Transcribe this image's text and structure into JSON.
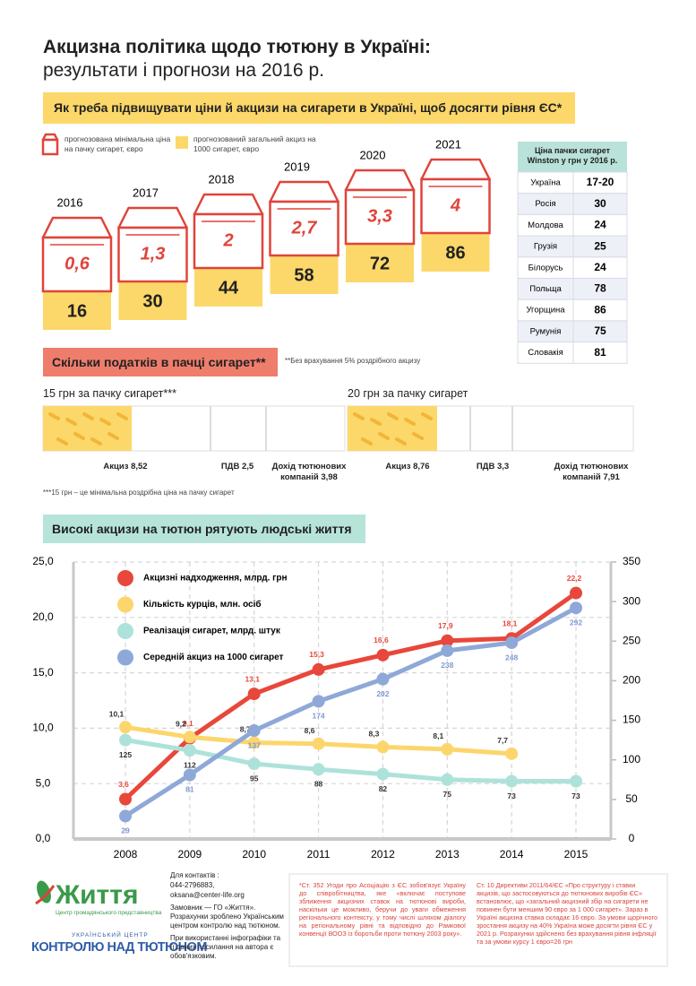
{
  "header": {
    "title": "Акцизна політика щодо тютюну в Україні:",
    "subtitle": "результати і прогнози на 2016 р."
  },
  "forecast": {
    "banner": "Як треба підвищувати ціни й акцизи  на сигарети в Україні, щоб досягти рівня ЄС*",
    "legend": {
      "price": "прогнозована мінімальна ціна на пачку сигарет, євро",
      "excise": "прогнозований загальний акциз на 1000 сигарет, євро"
    },
    "columns": [
      {
        "year": "2016",
        "price": "0,6",
        "excise": "16"
      },
      {
        "year": "2017",
        "price": "1,3",
        "excise": "30"
      },
      {
        "year": "2018",
        "price": "2",
        "excise": "44"
      },
      {
        "year": "2019",
        "price": "2,7",
        "excise": "58"
      },
      {
        "year": "2020",
        "price": "3,3",
        "excise": "72"
      },
      {
        "year": "2021",
        "price": "4",
        "excise": "86"
      }
    ]
  },
  "prices_table": {
    "header": "Ціна пачки сигарет Winston у грн у 2016 р.",
    "rows": [
      [
        "Україна",
        "17-20"
      ],
      [
        "Росія",
        "30"
      ],
      [
        "Молдова",
        "24"
      ],
      [
        "Грузія",
        "25"
      ],
      [
        "Білорусь",
        "24"
      ],
      [
        "Польща",
        "78"
      ],
      [
        "Угорщина",
        "86"
      ],
      [
        "Румунія",
        "75"
      ],
      [
        "Словакія",
        "81"
      ]
    ]
  },
  "taxes": {
    "banner": "Скільки податків в пачці сигарет**",
    "note": "**Без врахування 5% роздрібного акцизу",
    "packs": [
      {
        "title": "15 грн за пачку сигарет***",
        "parts": [
          "Акциз 8,52",
          "ПДВ 2,5",
          "Дохід тютюнових компаній  3,98"
        ]
      },
      {
        "title": "20 грн за пачку сигарет",
        "parts": [
          "Акциз 8,76",
          "ПДВ 3,3",
          "Дохід тютюнових компаній 7,91"
        ]
      }
    ],
    "footnote": "***15 грн – це мінімальна роздрібна ціна на пачку сигарет"
  },
  "lives": {
    "banner": "Високі акцизи на тютюн рятують людські життя"
  },
  "chart_data": {
    "type": "line",
    "categories": [
      "2008",
      "2009",
      "2010",
      "2011",
      "2012",
      "2013",
      "2014",
      "2015"
    ],
    "ylim": [
      0,
      25
    ],
    "yticks": [
      {
        "value": 0,
        "label": "0,0"
      },
      {
        "value": 5,
        "label": "5,0"
      },
      {
        "value": 10,
        "label": "10,0"
      },
      {
        "value": 15,
        "label": "15,0"
      },
      {
        "value": 20,
        "label": "20,0"
      },
      {
        "value": 25,
        "label": "25,0"
      }
    ],
    "y2lim": [
      0,
      350
    ],
    "y2ticks": [
      0,
      50,
      100,
      150,
      200,
      250,
      300,
      350
    ],
    "grid": true,
    "legend": "upper left",
    "series": [
      {
        "name": "Акцизні надходження, млрд. грн",
        "color": "#e8473b",
        "values": [
          3.6,
          9.1,
          13.1,
          15.3,
          16.6,
          17.9,
          18.1,
          22.2
        ],
        "value_labels": [
          "3,6",
          "9,1",
          "13,1",
          "15,3",
          "16,6",
          "17,9",
          "18,1",
          "22,2"
        ]
      },
      {
        "name": "Кількість курців, млн. осіб",
        "color": "#fcd66c",
        "values": [
          10.1,
          9.2,
          8.7,
          8.6,
          8.3,
          8.1,
          7.7,
          null
        ],
        "value_labels": [
          "10,1",
          "9,2",
          "8,7",
          "8,6",
          "8,3",
          "8,1",
          "7,7",
          null
        ]
      },
      {
        "name": "Реалізація сигарет, млрд. штук",
        "color": "#ade2da",
        "axis": "y2",
        "values": [
          125,
          112,
          95,
          88,
          82,
          75,
          73,
          73
        ]
      },
      {
        "name": "Середній акциз на 1000 сигарет",
        "color": "#8ea8d8",
        "axis": "y2",
        "values": [
          29,
          81,
          137,
          174,
          202,
          238,
          248,
          292
        ]
      }
    ]
  },
  "footer": {
    "logo": {
      "name": "Життя",
      "tagline": "Центр громадянського представництва",
      "center_top": "УКРАЇНСЬКИЙ ЦЕНТР",
      "center_name": "КОНТРОЛЮ НАД ТЮТЮНОМ"
    },
    "contacts": [
      "Для контактів :",
      "044-2796883,",
      "oksana@center-life.org"
    ],
    "customer": "Замовник — ГО «Життя». Розрахунки зроблено Українським центром контролю над тютюном.",
    "usage": "При використанні інфографіки та її даних посилання на автора є обов'язковим.",
    "notes": [
      "*Ст. 352 Угоди про Асоціацію з ЄС зобов'язує Україну до співробітництва, яке «включає поступове зближення акцизних ставок на тютюнові вироби, наскільки це можливо, беручи до уваги обмеження регіонального контексту, у тому числі шляхом діалогу на регіональному рівні та відповідно до Рамкової конвенції ВООЗ із боротьби проти тютюну 2003 року».",
      "Ст. 10 Директиви 2011/64/ЄС «Про структуру і ставки акцизів, що застосовуються до тютюнових виробів ЄС» встановлює, що «загальний акцизний збір на сигарети не повинен бути меншим 90 євро за 1 000 сигарет». Зараз в Україні акцизна ставка складає 16 євро. За умови щорічного зростання акцизу на 40% Україна може досягти рівня ЄС у 2021 р. Розрахунки здійснено без врахування рівня інфляції та за умови курсу 1 євро=26 грн"
    ]
  }
}
